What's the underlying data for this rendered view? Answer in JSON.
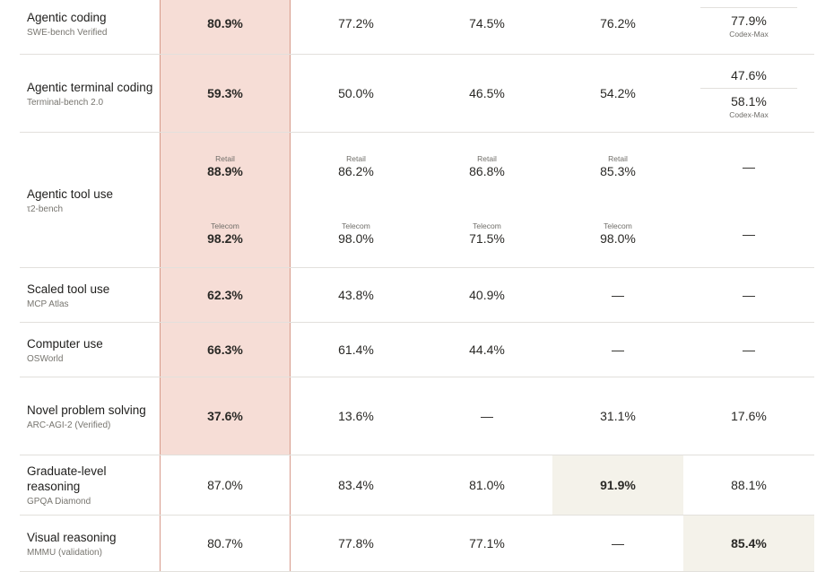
{
  "rows": [
    {
      "title": "Agentic coding",
      "subtitle": "SWE-bench Verified",
      "height": 68,
      "cells": [
        {
          "v": "80.9%",
          "bold": true
        },
        {
          "v": "77.2%"
        },
        {
          "v": "74.5%"
        },
        {
          "v": "76.2%"
        },
        {
          "split": [
            {
              "v": ""
            },
            {
              "v": "77.9%",
              "note": "Codex-Max"
            }
          ],
          "sep": true
        }
      ]
    },
    {
      "title": "Agentic terminal coding",
      "subtitle": "Terminal-bench 2.0",
      "height": 86,
      "cells": [
        {
          "v": "59.3%",
          "bold": true
        },
        {
          "v": "50.0%"
        },
        {
          "v": "46.5%"
        },
        {
          "v": "54.2%"
        },
        {
          "split": [
            {
              "v": "47.6%"
            },
            {
              "v": "58.1%",
              "note": "Codex-Max"
            }
          ],
          "sep": true
        }
      ]
    },
    {
      "title": "Agentic tool use",
      "subtitle": "τ2-bench",
      "height": 150,
      "cells": [
        {
          "split": [
            {
              "label": "Retail",
              "v": "88.9%",
              "bold": true
            },
            {
              "label": "Telecom",
              "v": "98.2%",
              "bold": true
            }
          ]
        },
        {
          "split": [
            {
              "label": "Retail",
              "v": "86.2%"
            },
            {
              "label": "Telecom",
              "v": "98.0%"
            }
          ]
        },
        {
          "split": [
            {
              "label": "Retail",
              "v": "86.8%"
            },
            {
              "label": "Telecom",
              "v": "71.5%"
            }
          ]
        },
        {
          "split": [
            {
              "label": "Retail",
              "v": "85.3%"
            },
            {
              "label": "Telecom",
              "v": "98.0%"
            }
          ]
        },
        {
          "split": [
            {
              "v": "—"
            },
            {
              "v": "—"
            }
          ]
        }
      ]
    },
    {
      "title": "Scaled tool use",
      "subtitle": "MCP Atlas",
      "height": 60,
      "cells": [
        {
          "v": "62.3%",
          "bold": true
        },
        {
          "v": "43.8%"
        },
        {
          "v": "40.9%"
        },
        {
          "v": "—"
        },
        {
          "v": "—"
        }
      ]
    },
    {
      "title": "Computer use",
      "subtitle": "OSWorld",
      "height": 60,
      "cells": [
        {
          "v": "66.3%",
          "bold": true
        },
        {
          "v": "61.4%"
        },
        {
          "v": "44.4%"
        },
        {
          "v": "—"
        },
        {
          "v": "—"
        }
      ]
    },
    {
      "title": "Novel problem solving",
      "subtitle": "ARC-AGI-2 (Verified)",
      "height": 86,
      "cells": [
        {
          "v": "37.6%",
          "bold": true
        },
        {
          "v": "13.6%"
        },
        {
          "v": "—"
        },
        {
          "v": "31.1%"
        },
        {
          "v": "17.6%"
        }
      ]
    },
    {
      "title": "Graduate-level reasoning",
      "subtitle": "GPQA Diamond",
      "height": 66,
      "cells": [
        {
          "v": "87.0%"
        },
        {
          "v": "83.4%"
        },
        {
          "v": "81.0%"
        },
        {
          "v": "91.9%",
          "bold": true,
          "best": true
        },
        {
          "v": "88.1%"
        }
      ]
    },
    {
      "title": "Visual reasoning",
      "subtitle": "MMMU (validation)",
      "height": 62,
      "cells": [
        {
          "v": "80.7%"
        },
        {
          "v": "77.8%"
        },
        {
          "v": "77.1%"
        },
        {
          "v": "—"
        },
        {
          "v": "85.4%",
          "bold": true,
          "best": true
        }
      ]
    }
  ],
  "colors": {
    "highlight_fill": "#f6ddd6",
    "highlight_border": "#d69a8a",
    "best_fill": "#f4f2ea"
  }
}
